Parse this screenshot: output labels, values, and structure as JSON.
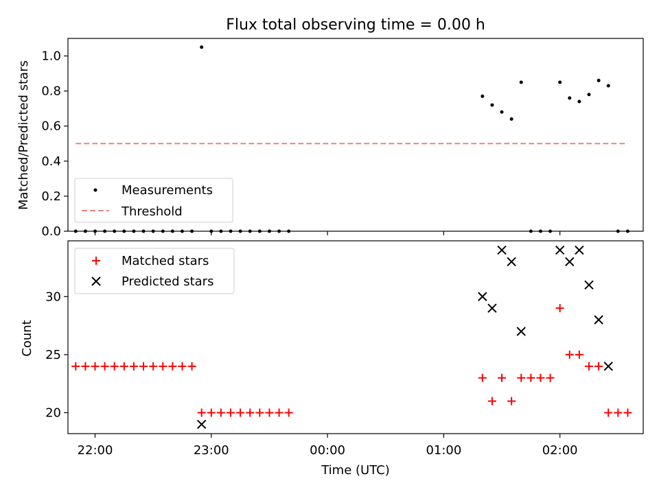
{
  "chart_data": [
    {
      "type": "scatter",
      "title": "Flux total observing time = 0.00 h",
      "ylabel": "Matched/Predicted stars",
      "xlabel": "",
      "xlim": [
        "21:46",
        "02:43"
      ],
      "ylim": [
        0,
        1.1
      ],
      "yticks": [
        "0.0",
        "0.2",
        "0.4",
        "0.6",
        "0.8",
        "1.0"
      ],
      "legend_position": "lower-left",
      "series": [
        {
          "name": "Measurements",
          "marker": "dot",
          "color": "#000000",
          "points": [
            {
              "x": "21:50",
              "y": 0
            },
            {
              "x": "21:55",
              "y": 0
            },
            {
              "x": "22:00",
              "y": 0
            },
            {
              "x": "22:05",
              "y": 0
            },
            {
              "x": "22:10",
              "y": 0
            },
            {
              "x": "22:15",
              "y": 0
            },
            {
              "x": "22:20",
              "y": 0
            },
            {
              "x": "22:25",
              "y": 0
            },
            {
              "x": "22:30",
              "y": 0
            },
            {
              "x": "22:35",
              "y": 0
            },
            {
              "x": "22:40",
              "y": 0
            },
            {
              "x": "22:45",
              "y": 0
            },
            {
              "x": "22:50",
              "y": 0
            },
            {
              "x": "22:55",
              "y": 1.05
            },
            {
              "x": "23:00",
              "y": 0
            },
            {
              "x": "23:05",
              "y": 0
            },
            {
              "x": "23:10",
              "y": 0
            },
            {
              "x": "23:15",
              "y": 0
            },
            {
              "x": "23:20",
              "y": 0
            },
            {
              "x": "23:25",
              "y": 0
            },
            {
              "x": "23:30",
              "y": 0
            },
            {
              "x": "23:35",
              "y": 0
            },
            {
              "x": "23:40",
              "y": 0
            },
            {
              "x": "01:20",
              "y": 0.77
            },
            {
              "x": "01:25",
              "y": 0.72
            },
            {
              "x": "01:30",
              "y": 0.68
            },
            {
              "x": "01:35",
              "y": 0.64
            },
            {
              "x": "01:40",
              "y": 0.85
            },
            {
              "x": "01:45",
              "y": 0
            },
            {
              "x": "01:50",
              "y": 0
            },
            {
              "x": "01:55",
              "y": 0
            },
            {
              "x": "02:00",
              "y": 0.85
            },
            {
              "x": "02:05",
              "y": 0.76
            },
            {
              "x": "02:10",
              "y": 0.74
            },
            {
              "x": "02:15",
              "y": 0.78
            },
            {
              "x": "02:20",
              "y": 0.86
            },
            {
              "x": "02:25",
              "y": 0.83
            },
            {
              "x": "02:30",
              "y": 0
            },
            {
              "x": "02:35",
              "y": 0
            }
          ]
        },
        {
          "name": "Threshold",
          "type": "line",
          "style": "dashed",
          "color": "#f08080",
          "points": [
            {
              "x": "21:50",
              "y": 0.5
            },
            {
              "x": "02:35",
              "y": 0.5
            }
          ]
        }
      ]
    },
    {
      "type": "scatter",
      "title": "",
      "ylabel": "Count",
      "xlabel": "Time (UTC)",
      "xlim": [
        "21:46",
        "02:43"
      ],
      "ylim": [
        18.2,
        34.8
      ],
      "yticks": [
        "20",
        "25",
        "30"
      ],
      "xticks": [
        "22:00",
        "23:00",
        "00:00",
        "01:00",
        "02:00"
      ],
      "legend_position": "upper-left",
      "series": [
        {
          "name": "Matched stars",
          "marker": "plus",
          "color": "#ff0000",
          "points": [
            {
              "x": "21:50",
              "y": 24
            },
            {
              "x": "21:55",
              "y": 24
            },
            {
              "x": "22:00",
              "y": 24
            },
            {
              "x": "22:05",
              "y": 24
            },
            {
              "x": "22:10",
              "y": 24
            },
            {
              "x": "22:15",
              "y": 24
            },
            {
              "x": "22:20",
              "y": 24
            },
            {
              "x": "22:25",
              "y": 24
            },
            {
              "x": "22:30",
              "y": 24
            },
            {
              "x": "22:35",
              "y": 24
            },
            {
              "x": "22:40",
              "y": 24
            },
            {
              "x": "22:45",
              "y": 24
            },
            {
              "x": "22:50",
              "y": 24
            },
            {
              "x": "22:55",
              "y": 20
            },
            {
              "x": "23:00",
              "y": 20
            },
            {
              "x": "23:05",
              "y": 20
            },
            {
              "x": "23:10",
              "y": 20
            },
            {
              "x": "23:15",
              "y": 20
            },
            {
              "x": "23:20",
              "y": 20
            },
            {
              "x": "23:25",
              "y": 20
            },
            {
              "x": "23:30",
              "y": 20
            },
            {
              "x": "23:35",
              "y": 20
            },
            {
              "x": "23:40",
              "y": 20
            },
            {
              "x": "01:20",
              "y": 23
            },
            {
              "x": "01:25",
              "y": 21
            },
            {
              "x": "01:30",
              "y": 23
            },
            {
              "x": "01:35",
              "y": 21
            },
            {
              "x": "01:40",
              "y": 23
            },
            {
              "x": "01:45",
              "y": 23
            },
            {
              "x": "01:50",
              "y": 23
            },
            {
              "x": "01:55",
              "y": 23
            },
            {
              "x": "02:00",
              "y": 29
            },
            {
              "x": "02:05",
              "y": 25
            },
            {
              "x": "02:10",
              "y": 25
            },
            {
              "x": "02:15",
              "y": 24
            },
            {
              "x": "02:20",
              "y": 24
            },
            {
              "x": "02:25",
              "y": 20
            },
            {
              "x": "02:30",
              "y": 20
            },
            {
              "x": "02:35",
              "y": 20
            }
          ]
        },
        {
          "name": "Predicted stars",
          "marker": "x",
          "color": "#000000",
          "points": [
            {
              "x": "22:55",
              "y": 19
            },
            {
              "x": "01:20",
              "y": 30
            },
            {
              "x": "01:25",
              "y": 29
            },
            {
              "x": "01:30",
              "y": 34
            },
            {
              "x": "01:35",
              "y": 33
            },
            {
              "x": "01:40",
              "y": 27
            },
            {
              "x": "02:00",
              "y": 34
            },
            {
              "x": "02:05",
              "y": 33
            },
            {
              "x": "02:10",
              "y": 34
            },
            {
              "x": "02:15",
              "y": 31
            },
            {
              "x": "02:20",
              "y": 28
            },
            {
              "x": "02:25",
              "y": 24
            }
          ]
        }
      ]
    }
  ]
}
